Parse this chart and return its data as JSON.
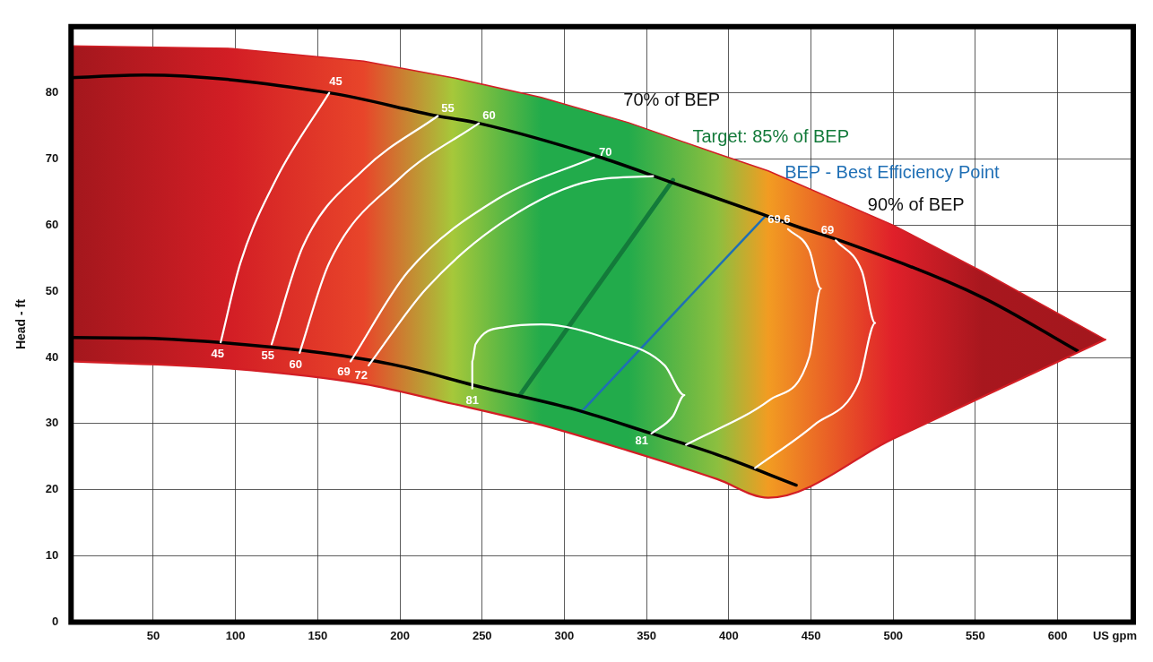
{
  "chart_data": {
    "type": "line",
    "xlabel": "US gpm",
    "ylabel": "Head - ft",
    "xlim": [
      0,
      646
    ],
    "ylim": [
      0,
      90
    ],
    "xticks": [
      50,
      100,
      150,
      200,
      250,
      300,
      350,
      400,
      450,
      500,
      550,
      600
    ],
    "yticks": [
      0,
      10,
      20,
      30,
      40,
      50,
      60,
      70,
      80
    ],
    "grid": true,
    "marker": "none",
    "line_style": "solid",
    "annotations": [
      {
        "text": "45",
        "x": 157,
        "y": 80
      },
      {
        "text": "55",
        "x": 223,
        "y": 76.5
      },
      {
        "text": "60",
        "x": 248,
        "y": 75.4
      },
      {
        "text": "70",
        "x": 318,
        "y": 70.2
      },
      {
        "text": "69.6",
        "x": 436,
        "y": 59.4
      },
      {
        "text": "69",
        "x": 465,
        "y": 57.7
      },
      {
        "text": "45",
        "x": 91,
        "y": 42.3
      },
      {
        "text": "55",
        "x": 122,
        "y": 42
      },
      {
        "text": "60",
        "x": 139,
        "y": 40.7
      },
      {
        "text": "69",
        "x": 170,
        "y": 39.4
      },
      {
        "text": "72",
        "x": 181,
        "y": 38.8
      },
      {
        "text": "81",
        "x": 244,
        "y": 35.3
      },
      {
        "text": "81",
        "x": 353,
        "y": 28.5
      },
      "70% of BEP",
      "90% of BEP"
    ],
    "series": [
      {
        "type": "area",
        "color": "#d31e25",
        "colors": [
          "#a3171d",
          "#d31e25",
          "#e8452a",
          "#a6c83a",
          "#22ab4b",
          "#22ab4b",
          "#8cbf3f",
          "#f29c22",
          "#e0202a",
          "#a8171e",
          "#a3171d"
        ],
        "x": [
          0,
          98,
          178,
          232,
          286,
          339,
          393,
          424,
          500,
          554,
          629
        ],
        "values": [
          87.1,
          86.7,
          84.8,
          82.3,
          79.3,
          75.5,
          70.8,
          68.2,
          60,
          53,
          42.7
        ]
      },
      {
        "color": "#d31e25",
        "x": [
          0,
          98,
          178,
          232,
          286,
          339,
          393,
          424,
          500,
          554,
          629
        ],
        "values": [
          39.4,
          38.3,
          36,
          33,
          29.8,
          25.9,
          21.6,
          18.8,
          27.7,
          34,
          42.7
        ]
      },
      {
        "color": "#ffffff",
        "x": [
          157,
          125,
          103,
          91
        ],
        "values": [
          80,
          67.1,
          54.3,
          42.3
        ]
      },
      {
        "color": "#ffffff",
        "x": [
          223,
          178,
          141,
          122
        ],
        "values": [
          76.5,
          68.4,
          56.8,
          42
        ]
      },
      {
        "color": "#ffffff",
        "x": [
          248,
          200,
          157,
          139
        ],
        "values": [
          75.4,
          67.1,
          54.3,
          40.7
        ]
      },
      {
        "color": "#ffffff",
        "x": [
          170,
          205,
          259,
          318
        ],
        "values": [
          39.4,
          53,
          63.9,
          70.2
        ]
      },
      {
        "color": "#ffffff",
        "x": [
          181,
          216,
          264,
          318,
          354
        ],
        "values": [
          38.8,
          50.4,
          60.7,
          66.8,
          67.4
        ]
      },
      {
        "color": "#ffffff",
        "x": [
          244,
          244,
          246,
          264,
          286,
          328,
          361,
          373,
          366,
          353
        ],
        "values": [
          35.3,
          39.4,
          42,
          44.6,
          45,
          42.7,
          38.8,
          34.3,
          31.1,
          28.5
        ]
      },
      {
        "color": "#ffffff",
        "x": [
          436,
          449,
          456,
          449,
          425,
          374
        ],
        "values": [
          59.4,
          56.2,
          50.4,
          40.1,
          33.6,
          26.8
        ]
      },
      {
        "color": "#ffffff",
        "x": [
          465,
          481,
          489,
          479,
          452,
          416
        ],
        "values": [
          57.7,
          53,
          45.2,
          36.2,
          29.8,
          23.3
        ]
      },
      {
        "color": "#000000",
        "x": [
          0,
          44.5,
          157,
          223,
          248,
          320,
          366,
          420,
          446,
          465,
          554,
          612
        ],
        "values": [
          82.3,
          82.7,
          80,
          76.5,
          75.4,
          70.4,
          66.4,
          61.7,
          59.4,
          57.9,
          49.1,
          41
        ]
      },
      {
        "color": "#000000",
        "x": [
          0,
          44.5,
          98,
          152,
          200,
          248,
          307,
          353,
          393,
          441
        ],
        "values": [
          43,
          42.9,
          42.1,
          40.7,
          38.7,
          35.6,
          32.1,
          28.5,
          25.3,
          20.7
        ]
      },
      {
        "name": "Target: 85% of BEP",
        "color": "#137a3a",
        "x": [
          273,
          366
        ],
        "values": [
          34.3,
          66.8
        ]
      },
      {
        "name": "BEP - Best Efficiency Point",
        "color": "#1f6fb5",
        "x": [
          310,
          422
        ],
        "values": [
          31.7,
          61.3
        ]
      }
    ]
  }
}
